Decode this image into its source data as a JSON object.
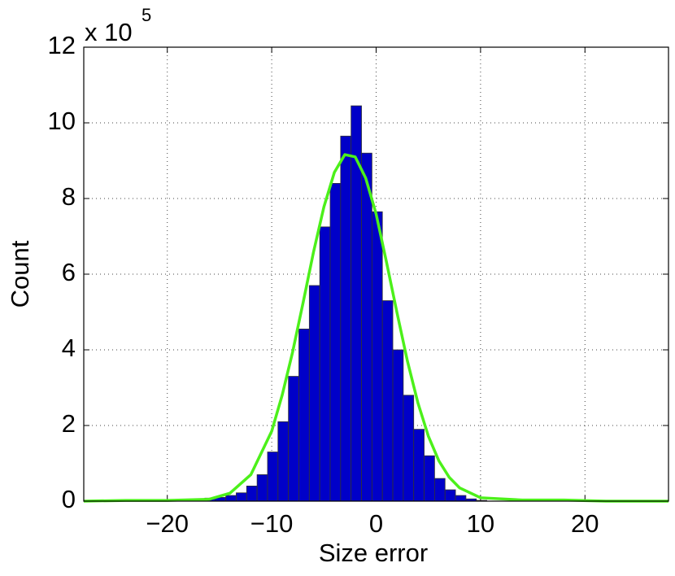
{
  "chart_data": {
    "type": "histogram",
    "xlabel": "Size error",
    "ylabel": "Count",
    "y_multiplier": {
      "base": "x 10",
      "exponent": "5"
    },
    "bins": [
      -19.4,
      -18.4,
      -17.4,
      -16.4,
      -15.4,
      -14.4,
      -13.4,
      -12.4,
      -11.4,
      -10.4,
      -9.4,
      -8.4,
      -7.4,
      -6.4,
      -5.4,
      -4.4,
      -3.4,
      -2.4,
      -1.4,
      -0.4,
      0.6,
      1.6,
      2.6,
      3.6,
      4.6,
      5.6,
      6.6,
      7.6,
      8.6,
      9.6,
      10.6
    ],
    "values": [
      0.02,
      0.04,
      0.06,
      0.08,
      0.1,
      0.15,
      0.22,
      0.4,
      0.7,
      1.3,
      2.1,
      3.3,
      4.55,
      5.7,
      7.25,
      8.4,
      9.65,
      10.45,
      9.2,
      7.65,
      5.3,
      4.0,
      2.8,
      1.9,
      1.2,
      0.6,
      0.3,
      0.15,
      0.06,
      0.02
    ],
    "color": "#0000c8",
    "fit": {
      "x": [
        -28,
        -24,
        -20,
        -16,
        -14,
        -12,
        -10,
        -9,
        -8,
        -7,
        -6,
        -5,
        -4,
        -3,
        -2,
        -1,
        0,
        1,
        2,
        3,
        4,
        5,
        6,
        7,
        8,
        10,
        14,
        18,
        22,
        28
      ],
      "values": [
        0,
        0.02,
        0.02,
        0.05,
        0.21,
        0.7,
        1.85,
        2.8,
        3.94,
        5.24,
        6.58,
        7.78,
        8.69,
        9.16,
        9.1,
        8.54,
        7.59,
        6.31,
        4.98,
        3.7,
        2.6,
        1.72,
        1.07,
        0.63,
        0.35,
        0.09,
        0.03,
        0.03,
        0,
        0
      ],
      "color": "#4cf01a"
    },
    "xlim": [
      -28,
      28
    ],
    "xticks": [
      {
        "value": -20,
        "label": "−20"
      },
      {
        "value": -10,
        "label": "−10"
      },
      0,
      10,
      20
    ],
    "ylim": [
      0,
      12
    ],
    "yticks": [
      0,
      2,
      4,
      6,
      8,
      10,
      12
    ],
    "grid": true
  }
}
